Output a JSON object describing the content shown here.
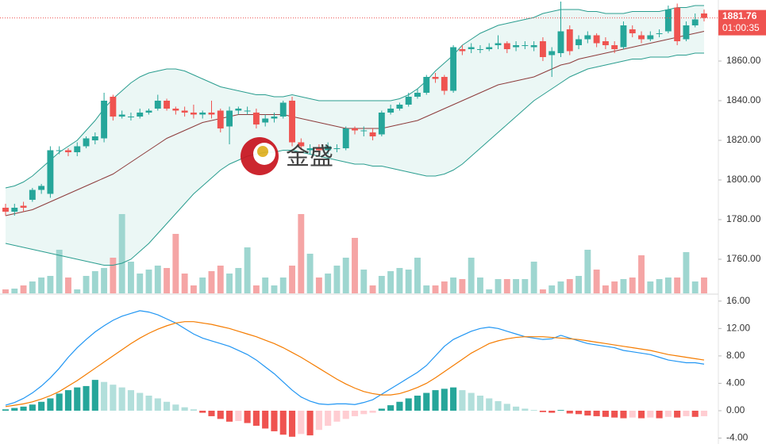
{
  "chart_data": [
    {
      "type": "candlestick",
      "watermark": "金盛",
      "countdown": "01:00:35",
      "up_color": "#26a69a",
      "down_color": "#ef5350",
      "volume_up_color": "#9ed6d0",
      "volume_down_color": "#f5a5a5",
      "band_fill": "#e3f3f1",
      "ylim": [
        1742.8,
        1890.8
      ],
      "yticks": [
        {
          "value": 1860,
          "label": "1860.00"
        },
        {
          "value": 1840,
          "label": "1840.00"
        },
        {
          "value": 1820,
          "label": "1820.00"
        },
        {
          "value": 1800,
          "label": "1800.00"
        },
        {
          "value": 1780,
          "label": "1780.00"
        },
        {
          "value": 1760,
          "label": "1760.00"
        }
      ],
      "open": [
        1786,
        1784,
        1787,
        1790,
        1795,
        1793,
        1815,
        1815,
        1814,
        1817,
        1820,
        1821,
        1842,
        1832,
        1832,
        1832,
        1834,
        1836,
        1840,
        1836,
        1835,
        1834,
        1833,
        1834,
        1835,
        1827,
        1835,
        1835,
        1834,
        1829,
        1831,
        1832,
        1840,
        1819,
        1815,
        1816,
        1815,
        1816,
        1816,
        1826,
        1825,
        1824,
        1823,
        1834,
        1836,
        1838,
        1842,
        1844,
        1852,
        1852,
        1845,
        1866,
        1866,
        1866,
        1866,
        1868,
        1869,
        1867,
        1868,
        1867,
        1870,
        1863,
        1864,
        1876,
        1868,
        1871,
        1873,
        1870,
        1868,
        1867,
        1876,
        1873,
        1871,
        1874,
        1875,
        1887,
        1871,
        1878,
        1884
      ],
      "high": [
        1788,
        1788,
        1789,
        1796,
        1798,
        1817,
        1817,
        1816,
        1819,
        1822,
        1824,
        1844,
        1843,
        1835,
        1834,
        1836,
        1836,
        1843,
        1841,
        1837,
        1837,
        1838,
        1835,
        1840,
        1836,
        1837,
        1837,
        1837,
        1836,
        1833,
        1834,
        1840,
        1842,
        1821,
        1818,
        1818,
        1819,
        1818,
        1827,
        1827,
        1827,
        1826,
        1835,
        1838,
        1839,
        1844,
        1846,
        1853,
        1854,
        1853,
        1868,
        1868,
        1869,
        1868,
        1869,
        1873,
        1870,
        1870,
        1870,
        1870,
        1872,
        1867,
        1890,
        1878,
        1873,
        1875,
        1874,
        1872,
        1870,
        1880,
        1878,
        1875,
        1875,
        1876,
        1888,
        1889,
        1880,
        1884,
        1886
      ],
      "low": [
        1782,
        1782,
        1784,
        1789,
        1793,
        1791,
        1813,
        1812,
        1812,
        1816,
        1818,
        1819,
        1830,
        1831,
        1830,
        1831,
        1833,
        1835,
        1835,
        1833,
        1832,
        1831,
        1831,
        1831,
        1824,
        1818,
        1833,
        1833,
        1826,
        1827,
        1829,
        1831,
        1817,
        1815,
        1813,
        1813,
        1813,
        1814,
        1815,
        1823,
        1822,
        1820,
        1822,
        1833,
        1835,
        1837,
        1841,
        1843,
        1849,
        1843,
        1844,
        1863,
        1864,
        1864,
        1865,
        1866,
        1864,
        1865,
        1866,
        1865,
        1860,
        1852,
        1862,
        1863,
        1866,
        1869,
        1867,
        1866,
        1864,
        1866,
        1872,
        1869,
        1870,
        1872,
        1874,
        1868,
        1870,
        1877,
        1880
      ],
      "close": [
        1784,
        1786,
        1786,
        1795,
        1797,
        1815,
        1815,
        1814,
        1817,
        1821,
        1822,
        1840,
        1832,
        1833,
        1832,
        1834,
        1835,
        1840,
        1836,
        1835,
        1834,
        1833,
        1834,
        1833,
        1826,
        1835,
        1836,
        1835,
        1828,
        1831,
        1832,
        1839,
        1819,
        1817,
        1816,
        1815,
        1817,
        1816,
        1826,
        1825,
        1825,
        1822,
        1834,
        1836,
        1838,
        1842,
        1844,
        1852,
        1851,
        1845,
        1867,
        1865,
        1867,
        1866,
        1867,
        1869,
        1866,
        1868,
        1868,
        1868,
        1862,
        1865,
        1875,
        1865,
        1871,
        1873,
        1869,
        1868,
        1866,
        1878,
        1874,
        1871,
        1873,
        1874,
        1886,
        1870,
        1878,
        1881,
        1881.76
      ],
      "volume": [
        5,
        6,
        10,
        15,
        20,
        22,
        55,
        20,
        5,
        22,
        28,
        32,
        45,
        100,
        40,
        25,
        30,
        35,
        32,
        75,
        25,
        10,
        20,
        28,
        35,
        25,
        32,
        58,
        10,
        20,
        10,
        20,
        35,
        100,
        50,
        20,
        25,
        35,
        45,
        70,
        30,
        10,
        22,
        28,
        32,
        30,
        45,
        10,
        10,
        15,
        20,
        18,
        45,
        20,
        5,
        18,
        18,
        18,
        18,
        40,
        5,
        10,
        15,
        18,
        22,
        55,
        30,
        10,
        15,
        18,
        20,
        48,
        15,
        18,
        20,
        20,
        52,
        15,
        20
      ],
      "series": [
        {
          "color": "#2a9d8f",
          "values": [
            1796,
            1797,
            1799,
            1802,
            1806,
            1810,
            1814,
            1817,
            1820,
            1825,
            1830,
            1836,
            1841,
            1845,
            1849,
            1852,
            1854,
            1855,
            1856,
            1856,
            1855,
            1853,
            1851,
            1849,
            1847,
            1846,
            1845,
            1844,
            1843,
            1843,
            1842,
            1842,
            1843,
            1842,
            1841,
            1840,
            1840,
            1840,
            1840,
            1840,
            1840,
            1840,
            1840,
            1840,
            1841,
            1843,
            1846,
            1850,
            1855,
            1859,
            1863,
            1868,
            1871,
            1874,
            1876,
            1878,
            1879,
            1880,
            1881,
            1882,
            1884,
            1885,
            1886,
            1886,
            1886,
            1885,
            1885,
            1884,
            1884,
            1884,
            1885,
            1885,
            1885,
            1885,
            1886,
            1887,
            1887,
            1888,
            1888
          ]
        },
        {
          "color": "#8d3b3b",
          "values": [
            1782,
            1783,
            1784,
            1785,
            1787,
            1789,
            1791,
            1793,
            1795,
            1797,
            1799,
            1801,
            1803,
            1806,
            1809,
            1812,
            1815,
            1818,
            1821,
            1823,
            1825,
            1827,
            1829,
            1830,
            1831,
            1832,
            1833,
            1833,
            1833,
            1833,
            1833,
            1833,
            1832,
            1831,
            1830,
            1829,
            1828,
            1827,
            1826,
            1826,
            1826,
            1826,
            1826,
            1827,
            1828,
            1829,
            1830,
            1832,
            1834,
            1836,
            1838,
            1840,
            1842,
            1844,
            1846,
            1848,
            1849,
            1850,
            1851,
            1852,
            1854,
            1856,
            1858,
            1859,
            1861,
            1862,
            1863,
            1864,
            1865,
            1866,
            1867,
            1868,
            1869,
            1870,
            1871,
            1872,
            1873,
            1874,
            1875
          ]
        },
        {
          "color": "#2a9d8f",
          "values": [
            1768,
            1767,
            1766,
            1765,
            1764,
            1763,
            1762,
            1761,
            1760,
            1759,
            1758,
            1757,
            1757,
            1758,
            1760,
            1764,
            1768,
            1773,
            1778,
            1783,
            1788,
            1793,
            1797,
            1801,
            1805,
            1808,
            1810,
            1812,
            1813,
            1814,
            1814,
            1815,
            1815,
            1814,
            1813,
            1812,
            1811,
            1810,
            1809,
            1808,
            1808,
            1807,
            1807,
            1806,
            1805,
            1804,
            1803,
            1802,
            1802,
            1803,
            1805,
            1808,
            1812,
            1816,
            1820,
            1824,
            1828,
            1832,
            1836,
            1840,
            1843,
            1846,
            1849,
            1852,
            1854,
            1856,
            1857,
            1858,
            1859,
            1860,
            1861,
            1861,
            1862,
            1862,
            1862,
            1863,
            1863,
            1864,
            1864
          ]
        }
      ]
    },
    {
      "type": "macd",
      "ylim": [
        -4.86,
        16.9
      ],
      "yticks": [
        {
          "value": 16,
          "label": "16.00"
        },
        {
          "value": 12,
          "label": "12.00"
        },
        {
          "value": 8,
          "label": "8.00"
        },
        {
          "value": 4,
          "label": "4.00"
        },
        {
          "value": 0,
          "label": "0.00"
        },
        {
          "value": -4,
          "label": "-4.00"
        }
      ],
      "histogram_colors": [
        "#26a69a",
        "#b2dfdb",
        "#ef5350",
        "#ffcdd2"
      ],
      "histogram": [
        0.2,
        0.4,
        0.6,
        0.9,
        1.3,
        1.8,
        2.5,
        3.0,
        3.4,
        3.6,
        4.5,
        4.2,
        3.8,
        3.4,
        3.0,
        2.6,
        2.2,
        1.8,
        1.3,
        0.9,
        0.5,
        0.2,
        -0.3,
        -0.8,
        -1.2,
        -1.6,
        -1.5,
        -1.8,
        -2.2,
        -2.6,
        -3.0,
        -3.5,
        -3.8,
        -3.4,
        -3.6,
        -2.8,
        -2.2,
        -1.6,
        -1.2,
        -0.8,
        -0.5,
        -0.3,
        0.3,
        0.8,
        1.3,
        1.8,
        2.2,
        2.6,
        3.0,
        3.2,
        3.4,
        3.0,
        2.6,
        2.2,
        1.8,
        1.4,
        1.0,
        0.6,
        0.3,
        0.1,
        -0.2,
        -0.3,
        0.1,
        -0.4,
        -0.5,
        -0.7,
        -0.8,
        -0.9,
        -1.0,
        -1.1,
        -1.0,
        -1.1,
        -1.0,
        -1.1,
        -0.9,
        -1.0,
        -0.8,
        -0.9,
        -0.8
      ],
      "series": [
        {
          "color": "#2196f3",
          "values": [
            0.8,
            1.2,
            1.8,
            2.6,
            3.6,
            4.8,
            6.2,
            7.8,
            9.2,
            10.4,
            11.5,
            12.4,
            13.2,
            13.8,
            14.2,
            14.6,
            14.4,
            14.0,
            13.4,
            12.8,
            12.0,
            11.2,
            10.6,
            10.2,
            9.8,
            9.4,
            8.8,
            8.2,
            7.4,
            6.4,
            5.4,
            4.2,
            3.0,
            2.0,
            1.4,
            1.0,
            0.9,
            1.0,
            1.0,
            0.9,
            1.2,
            1.6,
            2.4,
            3.2,
            4.0,
            4.8,
            5.6,
            6.6,
            8.0,
            9.4,
            10.4,
            11.0,
            11.6,
            12.0,
            12.2,
            12.0,
            11.6,
            11.2,
            10.8,
            10.6,
            10.4,
            10.5,
            11.0,
            10.6,
            10.2,
            9.8,
            9.6,
            9.4,
            9.2,
            8.8,
            8.6,
            8.4,
            8.2,
            7.8,
            7.4,
            7.2,
            7.0,
            7.0,
            6.8
          ]
        },
        {
          "color": "#f57c00",
          "values": [
            0.6,
            0.8,
            1.0,
            1.3,
            1.7,
            2.2,
            2.8,
            3.6,
            4.4,
            5.3,
            6.2,
            7.1,
            8.0,
            8.9,
            9.8,
            10.6,
            11.3,
            11.9,
            12.4,
            12.8,
            13.0,
            13.0,
            12.8,
            12.6,
            12.3,
            12.0,
            11.6,
            11.2,
            10.8,
            10.3,
            9.8,
            9.2,
            8.5,
            7.8,
            7.0,
            6.2,
            5.4,
            4.6,
            3.9,
            3.3,
            2.8,
            2.5,
            2.3,
            2.3,
            2.5,
            2.9,
            3.4,
            4.0,
            4.8,
            5.7,
            6.6,
            7.5,
            8.4,
            9.1,
            9.8,
            10.2,
            10.5,
            10.7,
            10.8,
            10.8,
            10.8,
            10.7,
            10.6,
            10.5,
            10.4,
            10.2,
            10.0,
            9.8,
            9.6,
            9.4,
            9.2,
            9.0,
            8.8,
            8.5,
            8.2,
            8.0,
            7.8,
            7.6,
            7.4
          ]
        }
      ]
    }
  ]
}
